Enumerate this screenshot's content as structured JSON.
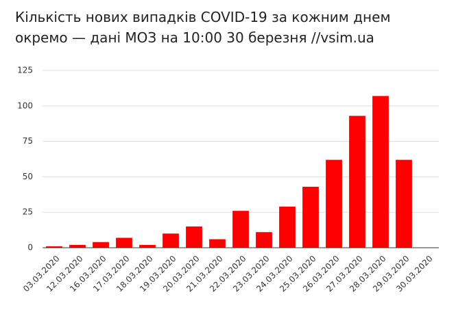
{
  "chart_data": {
    "type": "bar",
    "title": "Кількість нових випадків COVID-19 за кожним днем окремо — дані МОЗ на 10:00 30 березня //vsim.ua",
    "categories": [
      "03.03.2020",
      "12.03.2020",
      "16.03.2020",
      "17.03.2020",
      "18.03.2020",
      "19.03.2020",
      "20.03.2020",
      "21.03.2020",
      "22.03.2020",
      "23.03.2020",
      "24.03.2020",
      "25.03.2020",
      "26.03.2020",
      "27.03.2020",
      "28.03.2020",
      "29.03.2020",
      "30.03.2020"
    ],
    "values": [
      1,
      2,
      4,
      7,
      2,
      10,
      15,
      6,
      26,
      11,
      29,
      43,
      62,
      93,
      107,
      62,
      0
    ],
    "color": "#ff0000",
    "ylim": [
      0,
      125
    ],
    "yticks": [
      0,
      25,
      50,
      75,
      100,
      125
    ],
    "grid": true
  }
}
